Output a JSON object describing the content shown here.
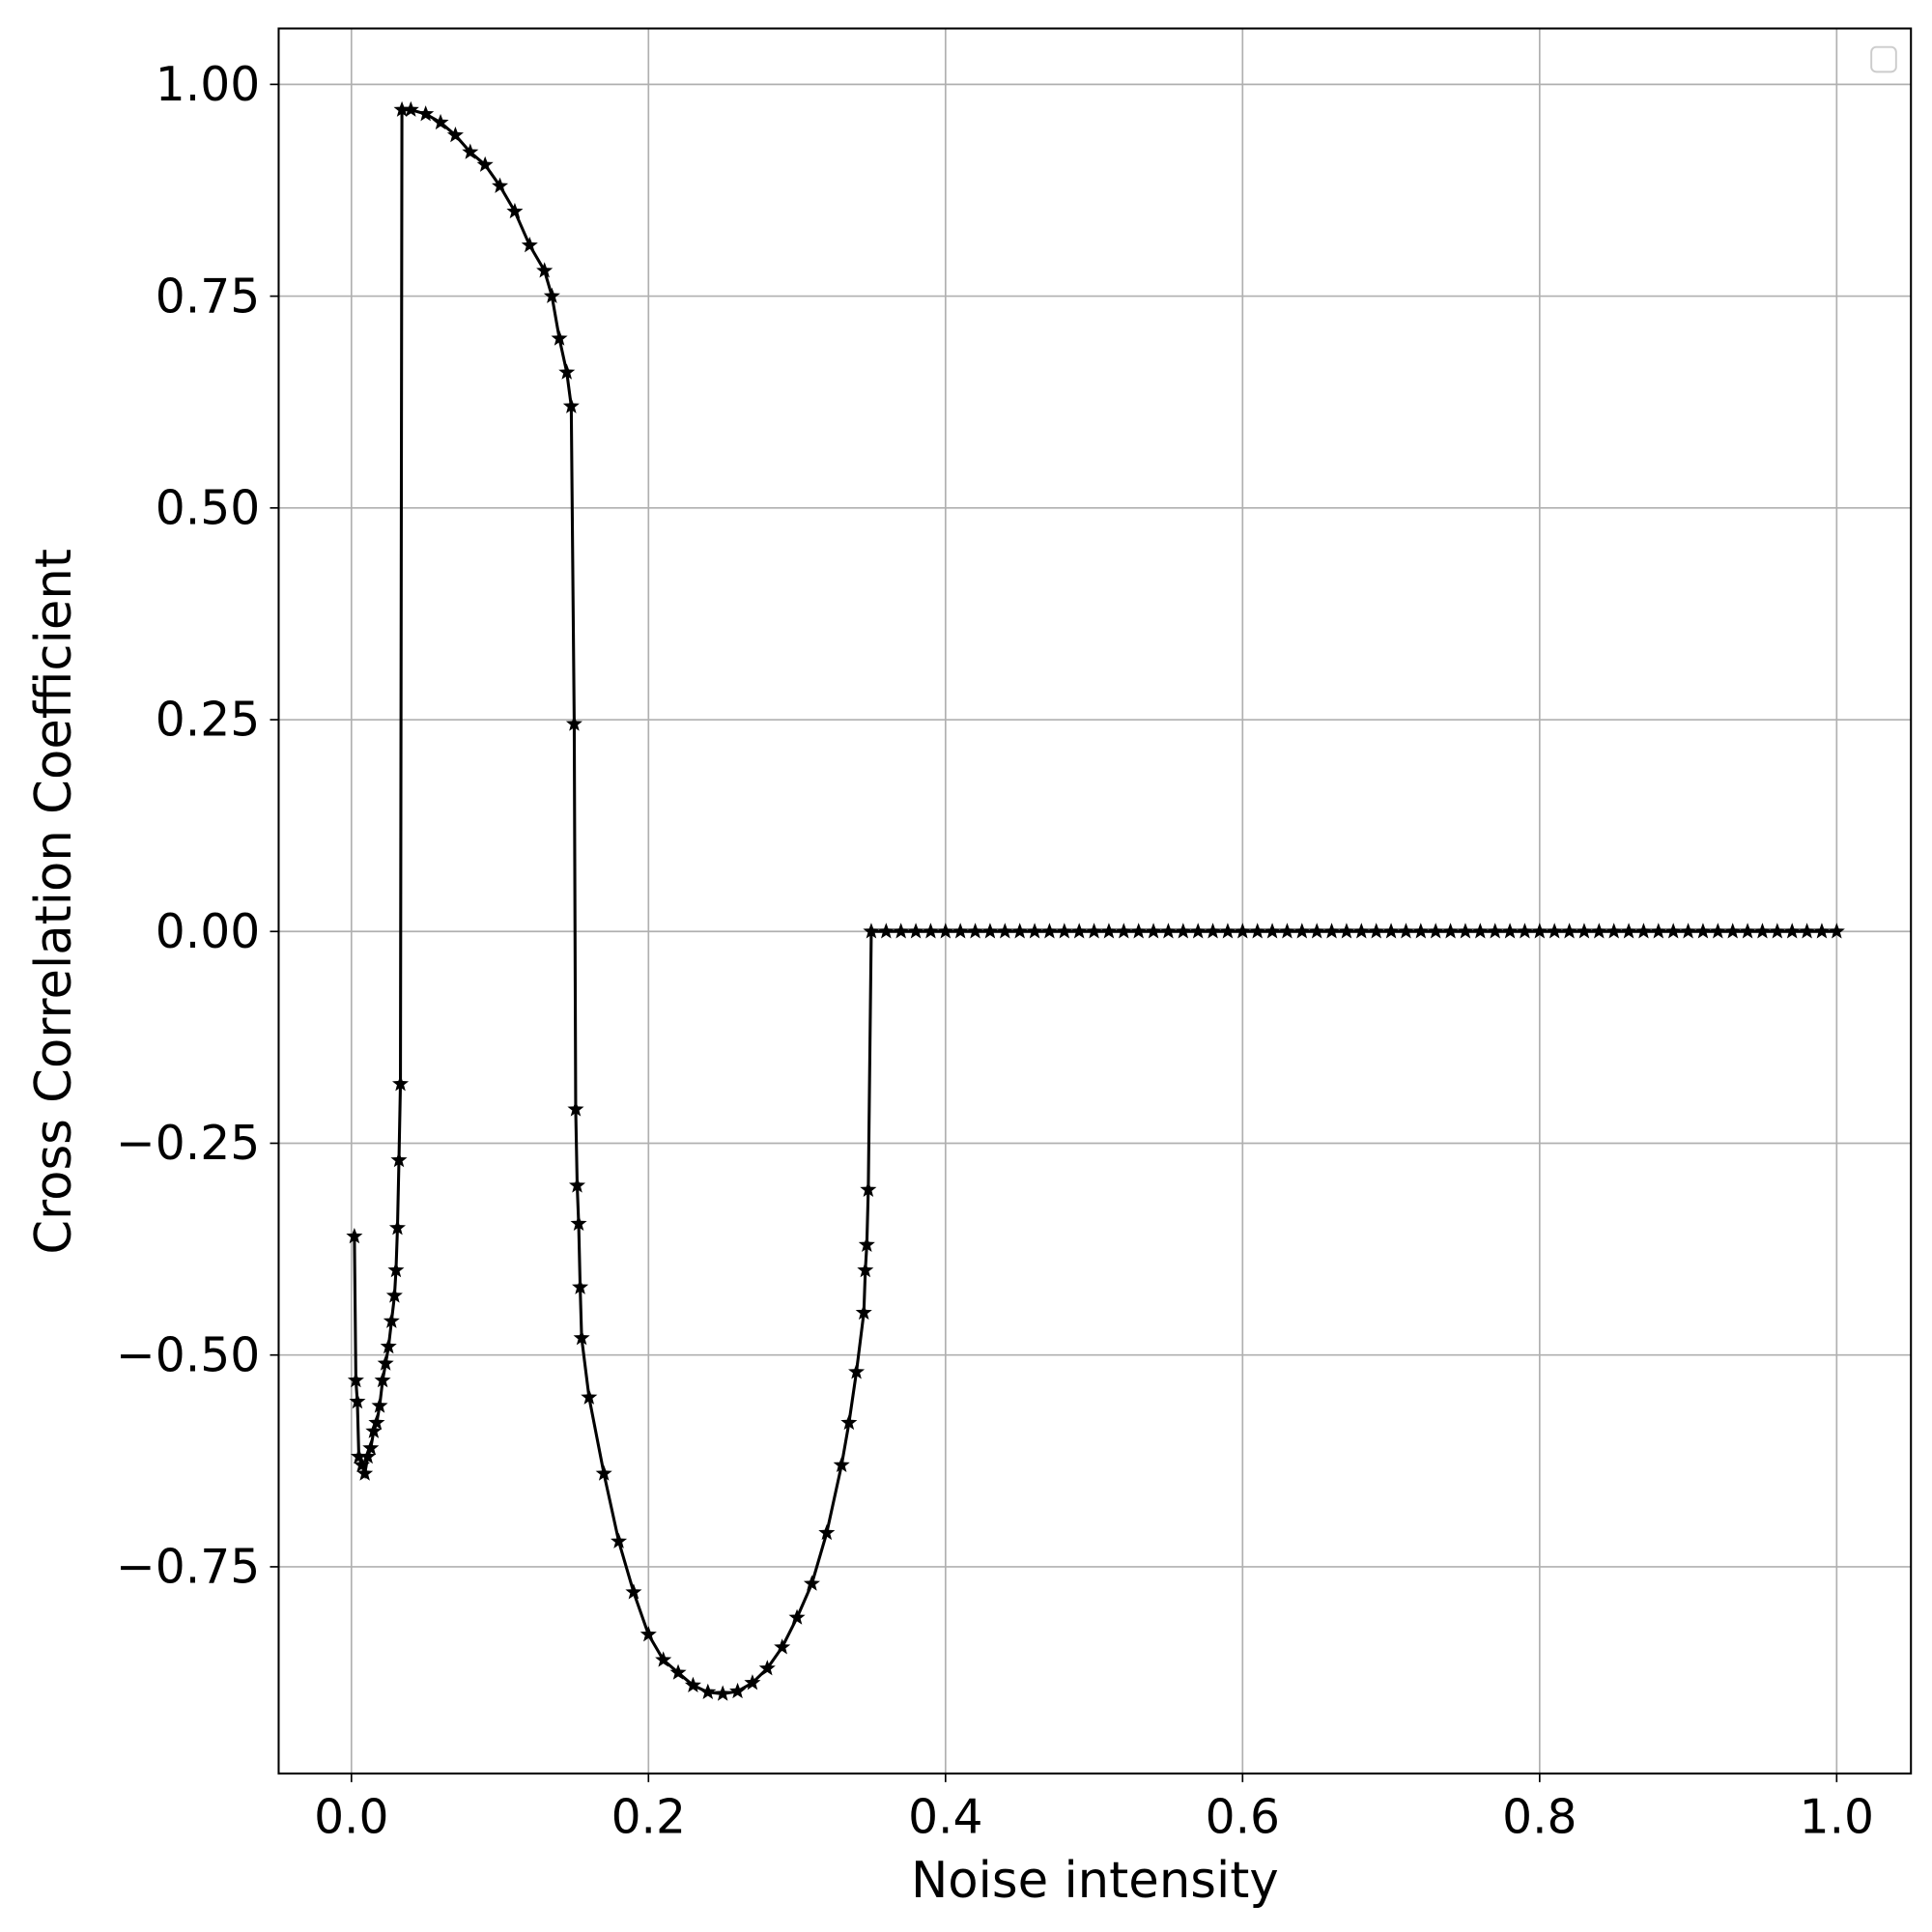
{
  "chart_data": {
    "type": "line",
    "xlabel": "Noise intensity",
    "ylabel": "Cross Correlation Coefficient",
    "color": "#000000",
    "marker": "star",
    "grid": true,
    "legend": "upper right",
    "xlim": [
      -0.049,
      1.05
    ],
    "ylim": [
      -0.994,
      1.066
    ],
    "xticks": [
      {
        "value": 0,
        "label": "0.0"
      },
      0.2,
      0.4,
      0.6,
      0.8,
      {
        "value": 1,
        "label": "1.0"
      }
    ],
    "yticks": [
      {
        "value": -0.75,
        "label": "−0.75"
      },
      {
        "value": -0.5,
        "label": "−0.50"
      },
      {
        "value": -0.25,
        "label": "−0.25"
      },
      {
        "value": 0,
        "label": "0.00"
      },
      {
        "value": 0.25,
        "label": "0.25"
      },
      {
        "value": 0.5,
        "label": "0.50"
      },
      {
        "value": 0.75,
        "label": "0.75"
      },
      {
        "value": 1,
        "label": "1.00"
      }
    ],
    "x": [
      0.002,
      0.003,
      0.004,
      0.005,
      0.007,
      0.009,
      0.011,
      0.013,
      0.015,
      0.017,
      0.019,
      0.021,
      0.023,
      0.025,
      0.027,
      0.029,
      0.03,
      0.031,
      0.032,
      0.033,
      0.034,
      0.04,
      0.05,
      0.06,
      0.07,
      0.08,
      0.09,
      0.1,
      0.11,
      0.12,
      0.13,
      0.135,
      0.14,
      0.145,
      0.148,
      0.15,
      0.151,
      0.152,
      0.153,
      0.154,
      0.155,
      0.16,
      0.17,
      0.18,
      0.19,
      0.2,
      0.21,
      0.22,
      0.23,
      0.24,
      0.25,
      0.26,
      0.27,
      0.28,
      0.29,
      0.3,
      0.31,
      0.32,
      0.33,
      0.335,
      0.34,
      0.345,
      0.346,
      0.347,
      0.348,
      0.35,
      0.36,
      0.37,
      0.38,
      0.39,
      0.4,
      0.41,
      0.42,
      0.43,
      0.44,
      0.45,
      0.46,
      0.47,
      0.48,
      0.49,
      0.5,
      0.51,
      0.52,
      0.53,
      0.54,
      0.55,
      0.56,
      0.57,
      0.58,
      0.59,
      0.6,
      0.61,
      0.62,
      0.63,
      0.64,
      0.65,
      0.66,
      0.67,
      0.68,
      0.69,
      0.7,
      0.71,
      0.72,
      0.73,
      0.74,
      0.75,
      0.76,
      0.77,
      0.78,
      0.79,
      0.8,
      0.81,
      0.82,
      0.83,
      0.84,
      0.85,
      0.86,
      0.87,
      0.88,
      0.89,
      0.9,
      0.91,
      0.92,
      0.93,
      0.94,
      0.95,
      0.96,
      0.97,
      0.98,
      0.99,
      1.0
    ],
    "values": [
      -0.36,
      -0.53,
      -0.555,
      -0.62,
      -0.63,
      -0.64,
      -0.62,
      -0.61,
      -0.59,
      -0.58,
      -0.56,
      -0.53,
      -0.51,
      -0.49,
      -0.46,
      -0.43,
      -0.4,
      -0.35,
      -0.27,
      -0.18,
      0.97,
      0.97,
      0.965,
      0.955,
      0.94,
      0.92,
      0.905,
      0.88,
      0.85,
      0.81,
      0.78,
      0.75,
      0.7,
      0.66,
      0.62,
      0.245,
      -0.21,
      -0.3,
      -0.345,
      -0.42,
      -0.48,
      -0.55,
      -0.64,
      -0.72,
      -0.78,
      -0.83,
      -0.86,
      -0.875,
      -0.89,
      -0.898,
      -0.9,
      -0.897,
      -0.887,
      -0.87,
      -0.845,
      -0.81,
      -0.77,
      -0.71,
      -0.63,
      -0.58,
      -0.52,
      -0.45,
      -0.4,
      -0.37,
      -0.305,
      0,
      0,
      0,
      0,
      0,
      0,
      0,
      0,
      0,
      0,
      0,
      0,
      0,
      0,
      0,
      0,
      0,
      0,
      0,
      0,
      0,
      0,
      0,
      0,
      0,
      0,
      0,
      0,
      0,
      0,
      0,
      0,
      0,
      0,
      0,
      0,
      0,
      0,
      0,
      0,
      0,
      0,
      0,
      0,
      0,
      0,
      0,
      0,
      0,
      0,
      0,
      0,
      0,
      0,
      0,
      0,
      0,
      0,
      0,
      0,
      0,
      0,
      0,
      0,
      0,
      0
    ]
  }
}
